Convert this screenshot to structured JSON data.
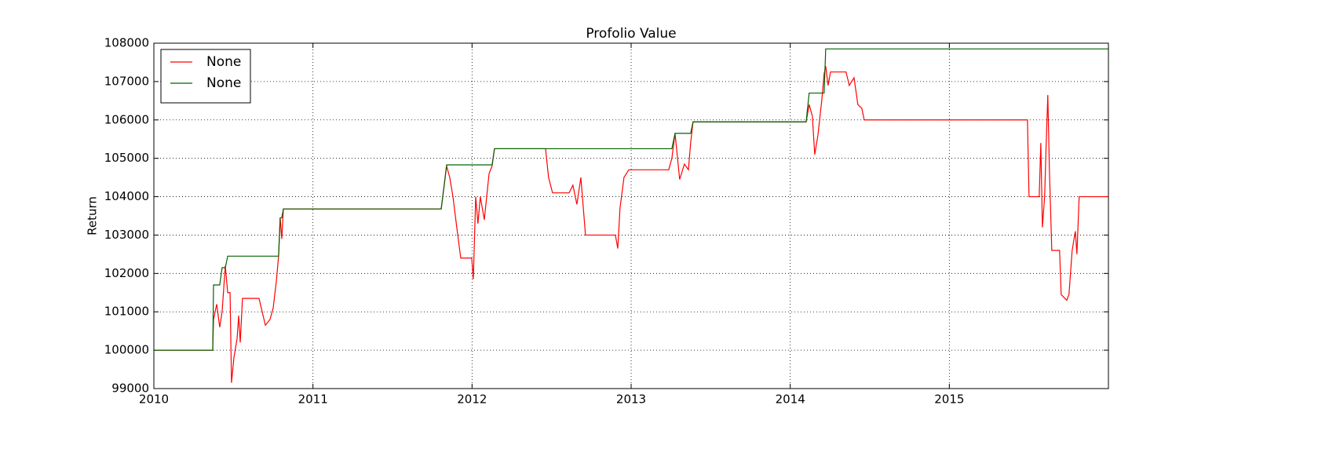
{
  "chart_data": {
    "type": "line",
    "title": "Profolio Value",
    "y_label": "Return",
    "x": [
      2010.0,
      2010.37,
      2010.375,
      2010.395,
      2010.414,
      2010.429,
      2010.449,
      2010.464,
      2010.479,
      2010.488,
      2010.503,
      2010.523,
      2010.533,
      2010.543,
      2010.557,
      2010.661,
      2010.681,
      2010.701,
      2010.73,
      2010.75,
      2010.77,
      2010.784,
      2010.794,
      2010.804,
      2010.814,
      2011.806,
      2011.825,
      2011.84,
      2011.86,
      2011.88,
      2011.904,
      2011.929,
      2011.998,
      2012.008,
      2012.023,
      2012.037,
      2012.052,
      2012.077,
      2012.092,
      2012.107,
      2012.126,
      2012.141,
      2012.462,
      2012.481,
      2012.506,
      2012.61,
      2012.634,
      2012.659,
      2012.684,
      2012.713,
      2012.901,
      2012.916,
      2012.93,
      2012.955,
      2012.985,
      2013.236,
      2013.256,
      2013.276,
      2013.305,
      2013.335,
      2013.36,
      2013.374,
      2013.389,
      2014.1,
      2014.119,
      2014.139,
      2014.154,
      2014.174,
      2014.198,
      2014.213,
      2014.223,
      2014.238,
      2014.253,
      2014.351,
      2014.371,
      2014.401,
      2014.425,
      2014.45,
      2014.465,
      2015.491,
      2015.501,
      2015.565,
      2015.575,
      2015.585,
      2015.599,
      2015.609,
      2015.619,
      2015.629,
      2015.644,
      2015.693,
      2015.703,
      2015.738,
      2015.752,
      2015.772,
      2015.792,
      2015.802,
      2015.816,
      2015.999
    ],
    "series": [
      {
        "name": "None",
        "color": "#ff0000",
        "values": [
          100000,
          100000,
          100800,
          101200,
          100600,
          101000,
          102200,
          101500,
          101500,
          99150,
          99800,
          100300,
          100900,
          100200,
          101350,
          101350,
          101000,
          100650,
          100800,
          101100,
          101800,
          102450,
          103450,
          102900,
          103680,
          103680,
          104300,
          104800,
          104500,
          104000,
          103200,
          102400,
          102400,
          101850,
          104000,
          103300,
          104000,
          103400,
          104000,
          104600,
          104800,
          105250,
          105250,
          104500,
          104100,
          104100,
          104300,
          103800,
          104500,
          103000,
          103000,
          102650,
          103700,
          104500,
          104700,
          104700,
          105000,
          105650,
          104450,
          104850,
          104700,
          105400,
          105950,
          105950,
          106400,
          106100,
          105100,
          105600,
          106500,
          107200,
          107400,
          106900,
          107250,
          107250,
          106900,
          107100,
          106400,
          106300,
          106000,
          106000,
          104000,
          104000,
          105400,
          103200,
          104000,
          105400,
          106650,
          104700,
          102600,
          102600,
          101450,
          101300,
          101450,
          102600,
          103100,
          102500,
          104000,
          104000
        ]
      },
      {
        "name": "None",
        "color": "#006400",
        "values": [
          100000,
          100000,
          101700,
          101700,
          101700,
          102150,
          102150,
          102450,
          102450,
          102450,
          102450,
          102450,
          102450,
          102450,
          102450,
          102450,
          102450,
          102450,
          102450,
          102450,
          102450,
          102450,
          103450,
          103450,
          103680,
          103680,
          104300,
          104830,
          104830,
          104830,
          104830,
          104830,
          104830,
          104830,
          104830,
          104830,
          104830,
          104830,
          104830,
          104830,
          104830,
          105250,
          105250,
          105250,
          105250,
          105250,
          105250,
          105250,
          105250,
          105250,
          105250,
          105250,
          105250,
          105250,
          105250,
          105250,
          105250,
          105650,
          105650,
          105650,
          105650,
          105650,
          105950,
          105950,
          106700,
          106700,
          106700,
          106700,
          106700,
          106700,
          107850,
          107850,
          107850,
          107850,
          107850,
          107850,
          107850,
          107850,
          107850,
          107850,
          107850,
          107850,
          107850,
          107850,
          107850,
          107850,
          107850,
          107850,
          107850,
          107850,
          107850,
          107850,
          107850,
          107850,
          107850,
          107850,
          107850,
          107850
        ]
      }
    ],
    "xlim": [
      2010,
      2016
    ],
    "xticks": [
      2010,
      2011,
      2012,
      2013,
      2014,
      2015
    ],
    "ylim": [
      99000,
      108000
    ],
    "yticks": [
      99000,
      100000,
      101000,
      102000,
      103000,
      104000,
      105000,
      106000,
      107000,
      108000
    ],
    "grid": true,
    "legend": "upper left"
  }
}
